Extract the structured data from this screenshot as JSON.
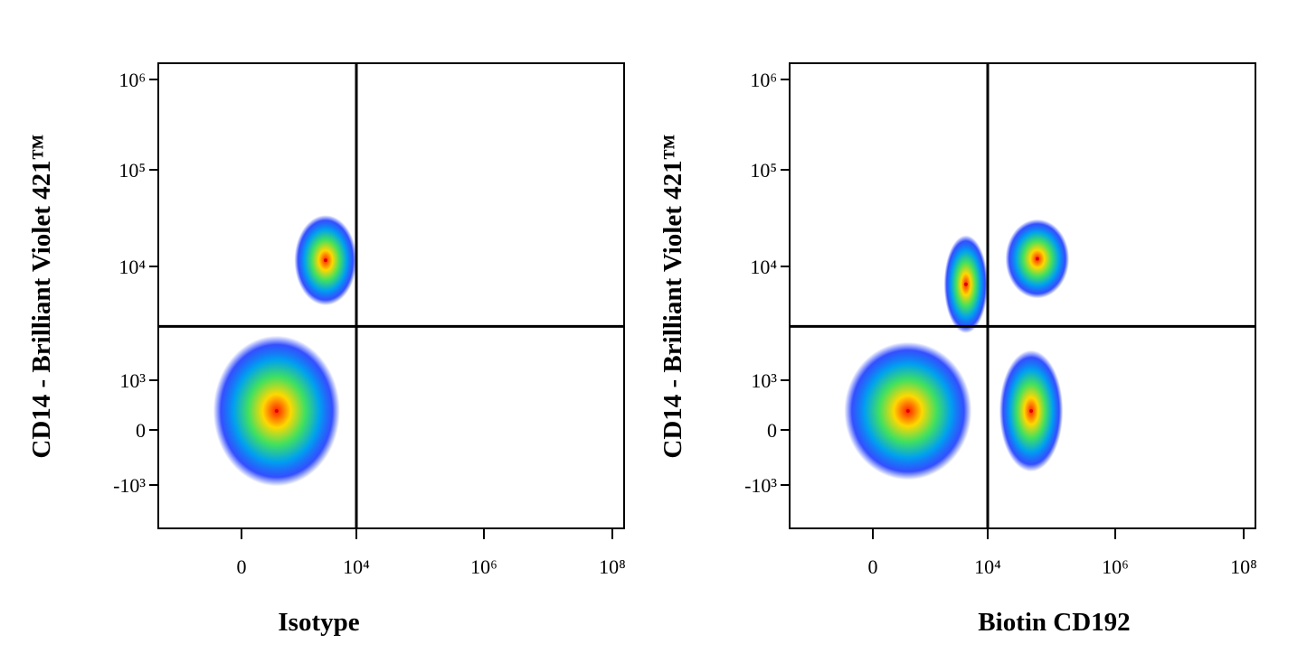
{
  "chart_data": [
    {
      "type": "scatter",
      "x_label": "Isotype",
      "y_label": "CD14 - Brilliant Violet 421™",
      "xlim": [
        -3100,
        150000000
      ],
      "ylim": [
        -4600,
        1500000
      ],
      "xticks": [
        0,
        {
          "value": 10000,
          "label": "10⁴"
        },
        {
          "value": 1000000,
          "label": "10⁶"
        },
        {
          "value": 100000000,
          "label": "10⁸"
        }
      ],
      "yticks": [
        {
          "value": -1000,
          "label": "-10³"
        },
        0,
        {
          "value": 1000,
          "label": "10³"
        },
        {
          "value": 10000,
          "label": "10⁴"
        },
        {
          "value": 100000,
          "label": "10⁵"
        },
        {
          "value": 1000000,
          "label": "10⁶"
        }
      ],
      "quadrant_gate": {
        "x": 10000,
        "y": 3000
      },
      "populations": [
        {
          "x": 500,
          "y": 240,
          "xrange": [
            -1150,
            1950
          ],
          "yrange": [
            -1300,
            2200
          ]
        },
        {
          "x": 3240,
          "y": 11600,
          "xrange": [
            1000,
            10000
          ],
          "yrange": [
            4000,
            29000
          ]
        }
      ]
    },
    {
      "type": "scatter",
      "x_label": "Biotin CD192",
      "y_label": "CD14 - Brilliant Violet 421™",
      "xlim": [
        -3100,
        150000000
      ],
      "ylim": [
        -4600,
        1500000
      ],
      "xticks": [
        0,
        {
          "value": 10000,
          "label": "10⁴"
        },
        {
          "value": 1000000,
          "label": "10⁶"
        },
        {
          "value": 100000000,
          "label": "10⁸"
        }
      ],
      "yticks": [
        {
          "value": -1000,
          "label": "-10³"
        },
        0,
        {
          "value": 1000,
          "label": "10³"
        },
        {
          "value": 10000,
          "label": "10⁴"
        },
        {
          "value": 100000,
          "label": "10⁵"
        },
        {
          "value": 1000000,
          "label": "10⁶"
        }
      ],
      "quadrant_gate": {
        "x": 10000,
        "y": 3000
      },
      "populations": [
        {
          "x": 500,
          "y": 240,
          "xrange": [
            -1150,
            2000
          ],
          "yrange": [
            -1300,
            1700
          ]
        },
        {
          "x": 48000,
          "y": 240,
          "xrange": [
            10000,
            100000
          ],
          "yrange": [
            -900,
            1500
          ]
        },
        {
          "x": 60000,
          "y": 12000,
          "xrange": [
            12000,
            120000
          ],
          "yrange": [
            5000,
            29000
          ]
        },
        {
          "x": 4500,
          "y": 7000,
          "xrange": [
            2000,
            10000
          ],
          "yrange": [
            2500,
            20000
          ]
        }
      ]
    }
  ]
}
